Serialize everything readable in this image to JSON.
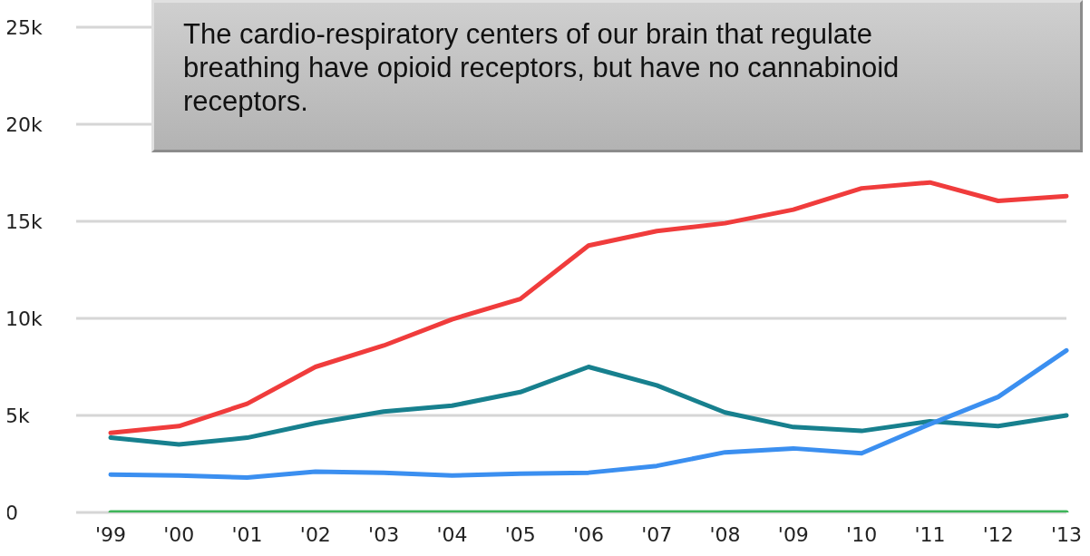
{
  "chart_data": {
    "type": "line",
    "categories": [
      "'99",
      "'00",
      "'01",
      "'02",
      "'03",
      "'04",
      "'05",
      "'06",
      "'07",
      "'08",
      "'09",
      "'10",
      "'11",
      "'12",
      "'13"
    ],
    "series": [
      {
        "color": "#f03c3c",
        "values": [
          4100,
          4450,
          5600,
          7500,
          8600,
          9950,
          11000,
          13750,
          14500,
          14900,
          15600,
          16700,
          17000,
          16050,
          16300
        ]
      },
      {
        "color": "#17808e",
        "values": [
          3850,
          3500,
          3850,
          4600,
          5200,
          5500,
          6200,
          7500,
          6550,
          5150,
          4400,
          4200,
          4700,
          4450,
          5000
        ]
      },
      {
        "color": "#3b8ff0",
        "values": [
          1950,
          1900,
          1800,
          2100,
          2050,
          1900,
          2000,
          2050,
          2400,
          3100,
          3300,
          3050,
          4550,
          5950,
          8350
        ]
      },
      {
        "color": "#3fb55a",
        "values": [
          0,
          0,
          0,
          0,
          0,
          0,
          0,
          0,
          0,
          0,
          0,
          0,
          0,
          0,
          0
        ]
      }
    ],
    "ylim": [
      0,
      25000
    ],
    "yticks": [
      0,
      {
        "value": 5000,
        "label": "5k"
      },
      {
        "value": 10000,
        "label": "10k"
      },
      {
        "value": 15000,
        "label": "15k"
      },
      {
        "value": 20000,
        "label": "20k"
      },
      {
        "value": 25000,
        "label": "25k"
      }
    ],
    "grid": "y",
    "marker": "none",
    "line_style": "solid",
    "annotations": [
      "The cardio-respiratory centers of our brain that regulate breathing have opioid receptors, but have no cannabinoid receptors."
    ]
  }
}
